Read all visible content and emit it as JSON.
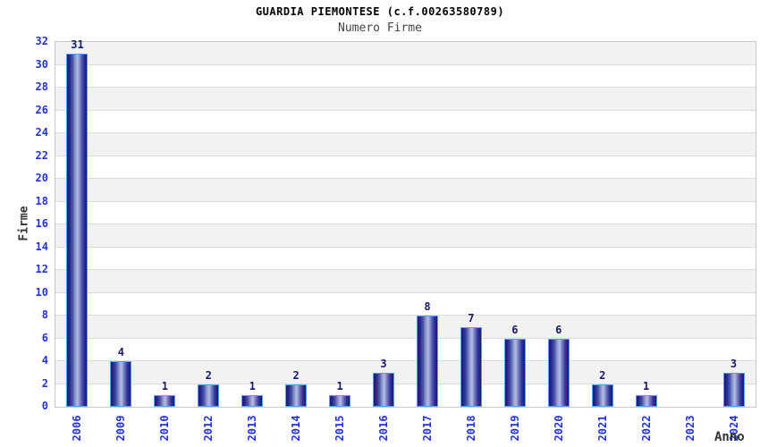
{
  "chart_data": {
    "type": "bar",
    "title": "GUARDIA PIEMONTESE (c.f.00263580789)",
    "subtitle": "Numero Firme",
    "xlabel": "Anno",
    "ylabel": "Firme",
    "categories": [
      "2006",
      "2009",
      "2010",
      "2012",
      "2013",
      "2014",
      "2015",
      "2016",
      "2017",
      "2018",
      "2019",
      "2020",
      "2021",
      "2022",
      "2023",
      "2024"
    ],
    "values": [
      31,
      4,
      1,
      2,
      1,
      2,
      1,
      3,
      8,
      7,
      6,
      6,
      2,
      1,
      0,
      3
    ],
    "ylim": [
      0,
      32
    ],
    "ytick_step": 2,
    "grid": "horizontal bands alternating white and light gray every 2 units, gridlines at even values",
    "legend": "none",
    "bar_value_labels": "shown above each non-zero bar",
    "x_tick_rotation": "vertical (rotated 90 degrees)",
    "colors": {
      "tick_label": "#2233cc",
      "value_label": "#181868",
      "bar_border": "#55a0f0",
      "bar_dark": "#191978",
      "bar_light": "#b4bce6",
      "band_gray": "#f2f2f2",
      "grid_line": "#dcdcdc",
      "plot_border": "#c8c8c8",
      "axis_title": "#333333",
      "title": "#000000",
      "subtitle": "#444444"
    }
  }
}
